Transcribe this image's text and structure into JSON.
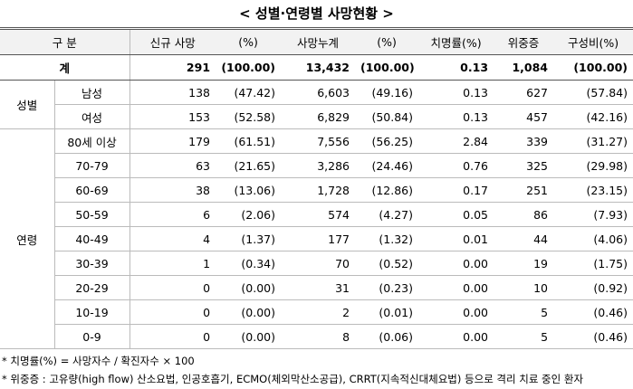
{
  "title": "< 성별·연령별 사망현황 >",
  "table": {
    "header": [
      "구 분",
      "신규 사망",
      "(%)",
      "사망누계",
      "(%)",
      "치명률(%)",
      "위중증",
      "구성비(%)"
    ],
    "total": {
      "label": "계",
      "cells": [
        "291",
        "(100.00)",
        "13,432",
        "(100.00)",
        "0.13",
        "1,084",
        "(100.00)"
      ]
    },
    "groups": [
      {
        "label": "성별",
        "rows": [
          {
            "label": "남성",
            "cells": [
              "138",
              "(47.42)",
              "6,603",
              "(49.16)",
              "0.13",
              "627",
              "(57.84)"
            ]
          },
          {
            "label": "여성",
            "cells": [
              "153",
              "(52.58)",
              "6,829",
              "(50.84)",
              "0.13",
              "457",
              "(42.16)"
            ]
          }
        ]
      },
      {
        "label": "연령",
        "rows": [
          {
            "label": "80세 이상",
            "cells": [
              "179",
              "(61.51)",
              "7,556",
              "(56.25)",
              "2.84",
              "339",
              "(31.27)"
            ]
          },
          {
            "label": "70-79",
            "cells": [
              "63",
              "(21.65)",
              "3,286",
              "(24.46)",
              "0.76",
              "325",
              "(29.98)"
            ]
          },
          {
            "label": "60-69",
            "cells": [
              "38",
              "(13.06)",
              "1,728",
              "(12.86)",
              "0.17",
              "251",
              "(23.15)"
            ]
          },
          {
            "label": "50-59",
            "cells": [
              "6",
              "(2.06)",
              "574",
              "(4.27)",
              "0.05",
              "86",
              "(7.93)"
            ]
          },
          {
            "label": "40-49",
            "cells": [
              "4",
              "(1.37)",
              "177",
              "(1.32)",
              "0.01",
              "44",
              "(4.06)"
            ]
          },
          {
            "label": "30-39",
            "cells": [
              "1",
              "(0.34)",
              "70",
              "(0.52)",
              "0.00",
              "19",
              "(1.75)"
            ]
          },
          {
            "label": "20-29",
            "cells": [
              "0",
              "(0.00)",
              "31",
              "(0.23)",
              "0.00",
              "10",
              "(0.92)"
            ]
          },
          {
            "label": "10-19",
            "cells": [
              "0",
              "(0.00)",
              "2",
              "(0.01)",
              "0.00",
              "5",
              "(0.46)"
            ]
          },
          {
            "label": "0-9",
            "cells": [
              "0",
              "(0.00)",
              "8",
              "(0.06)",
              "0.00",
              "5",
              "(0.46)"
            ]
          }
        ]
      }
    ]
  },
  "notes": [
    "* 치명률(%) = 사망자수 / 확진자수 × 100",
    "* 위중증 : 고유량(high flow) 산소요법, 인공호흡기, ECMO(체외막산소공급), CRRT(지속적신대체요법) 등으로 격리 치료 중인 환자"
  ]
}
